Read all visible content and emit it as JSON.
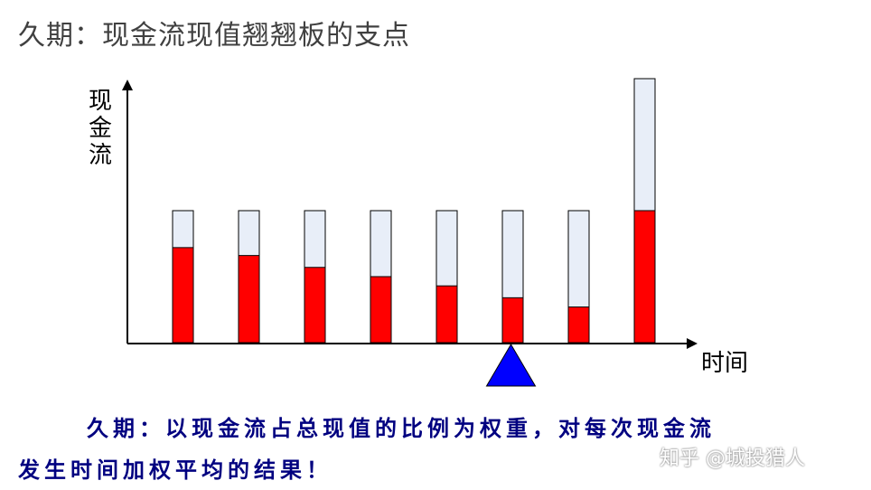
{
  "title": "久期：现金流现值翘翘板的支点",
  "y_axis_label": "现金流",
  "x_axis_label": "时间",
  "caption_line1": "久期：以现金流占总现值的比例为权重，对每次现金流",
  "caption_line2": "发生时间加权平均的结果！",
  "watermark": "知乎 @城投猎人",
  "colors": {
    "present_value": "#ff0000",
    "cash_flow": "#e8eef8",
    "bar_border": "#000000",
    "fulcrum": "#0000ff",
    "caption": "#000080"
  },
  "bars": [
    {
      "cash_flow": 1,
      "present_value": 0.72
    },
    {
      "cash_flow": 1,
      "present_value": 0.66
    },
    {
      "cash_flow": 1,
      "present_value": 0.57
    },
    {
      "cash_flow": 1,
      "present_value": 0.5
    },
    {
      "cash_flow": 1,
      "present_value": 0.43
    },
    {
      "cash_flow": 1,
      "present_value": 0.34
    },
    {
      "cash_flow": 1,
      "present_value": 0.27
    },
    {
      "cash_flow": 2,
      "present_value": 1.0
    }
  ],
  "fulcrum_position": 6
}
